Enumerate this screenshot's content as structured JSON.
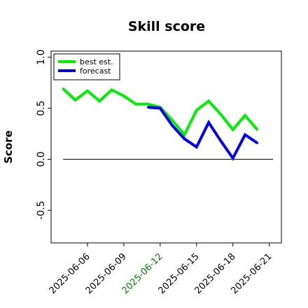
{
  "chart_data": {
    "type": "line",
    "title": "Skill score",
    "xlabel": "",
    "ylabel": "Score",
    "ylim": [
      -0.82,
      1.06
    ],
    "grid": false,
    "legend_placement": "top-left",
    "yticks": [
      1.0,
      0.5,
      0.0,
      -0.5
    ],
    "ytick_labels": [
      "1.0",
      "0.5",
      "0.0",
      "-0.5"
    ],
    "x_dates": [
      "2025-06-04",
      "2025-06-05",
      "2025-06-06",
      "2025-06-07",
      "2025-06-08",
      "2025-06-09",
      "2025-06-10",
      "2025-06-11",
      "2025-06-12",
      "2025-06-13",
      "2025-06-14",
      "2025-06-15",
      "2025-06-16",
      "2025-06-17",
      "2025-06-18",
      "2025-06-19",
      "2025-06-20",
      "2025-06-21"
    ],
    "xlim": [
      "2025-06-03",
      "2025-06-22"
    ],
    "xtick_labels": [
      "2025-06-06",
      "2025-06-09",
      "2025-06-12",
      "2025-06-15",
      "2025-06-18",
      "2025-06-21"
    ],
    "xtick_colors": [
      "#000000",
      "#000000",
      "#008000",
      "#000000",
      "#000000",
      "#000000"
    ],
    "reference_line": 0,
    "series": [
      {
        "name": "best est.",
        "color": "#00ee00",
        "values": [
          0.69,
          0.58,
          0.67,
          0.57,
          0.68,
          0.62,
          0.54,
          0.54,
          0.51,
          0.38,
          0.24,
          0.48,
          0.57,
          0.44,
          0.29,
          0.43,
          0.29,
          null
        ]
      },
      {
        "name": "forecast",
        "color": "#0000ee",
        "values": [
          null,
          null,
          null,
          null,
          null,
          null,
          null,
          0.51,
          0.5,
          0.33,
          0.2,
          0.12,
          0.36,
          0.18,
          0.01,
          0.24,
          0.16,
          null
        ]
      }
    ]
  }
}
